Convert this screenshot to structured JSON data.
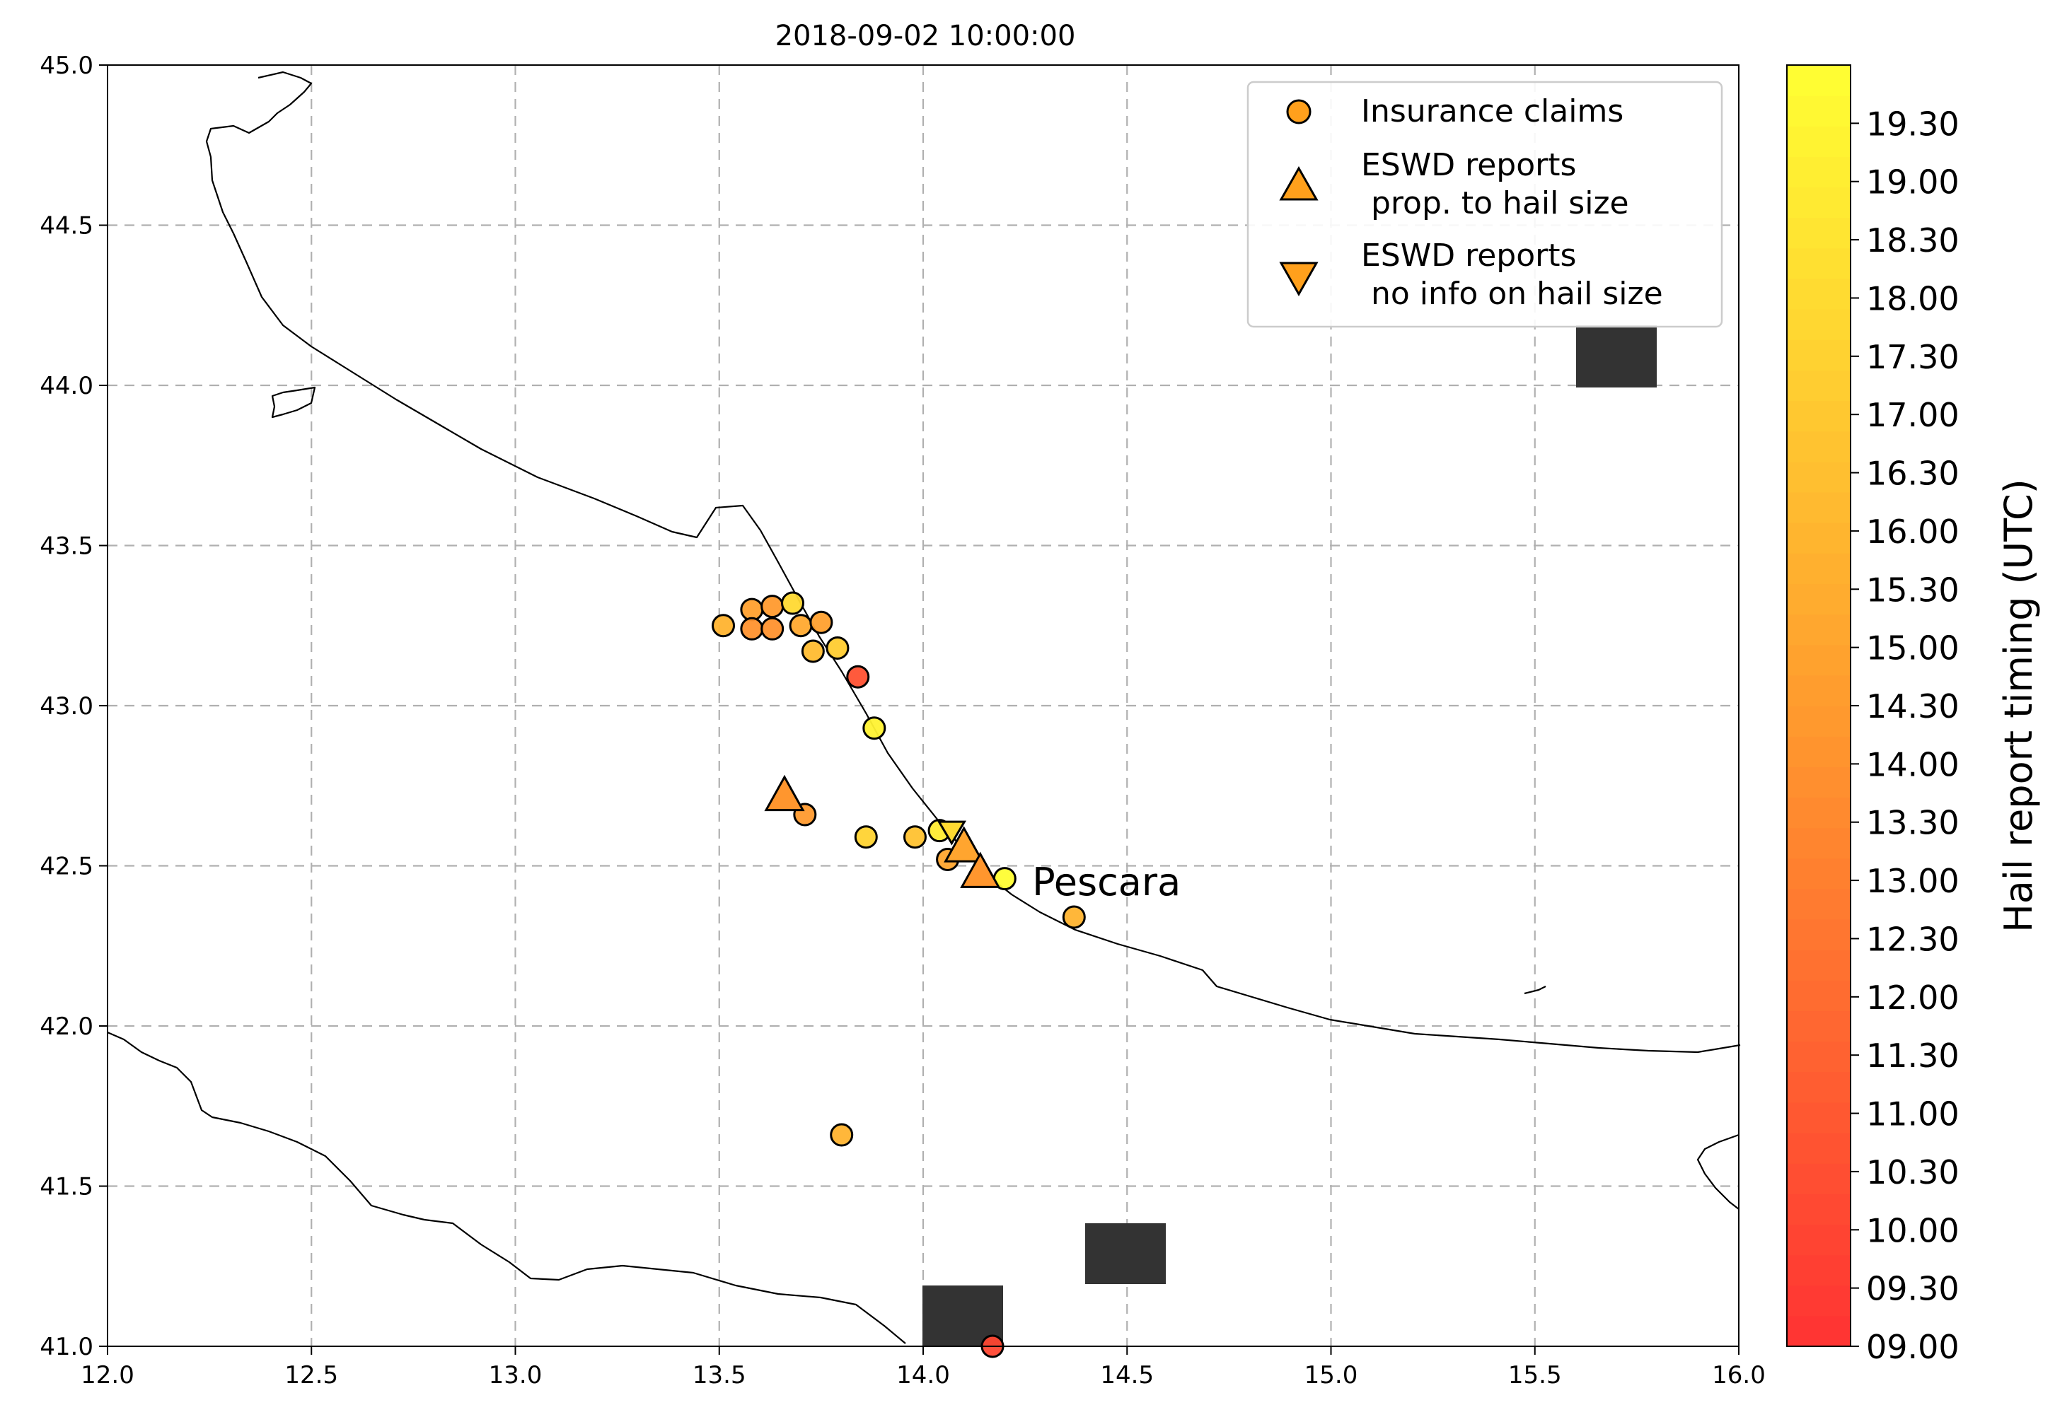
{
  "title": "2018-09-02 10:00:00",
  "map": {
    "lon_range": [
      12.0,
      16.0
    ],
    "lat_range": [
      41.0,
      45.0
    ],
    "x_ticks": [
      "12.0",
      "12.5",
      "13.0",
      "13.5",
      "14.0",
      "14.5",
      "15.0",
      "15.5",
      "16.0"
    ],
    "y_ticks": [
      "45.0",
      "44.5",
      "44.0",
      "43.5",
      "43.0",
      "42.5",
      "42.0",
      "41.5",
      "41.0"
    ],
    "grid": true,
    "city_label": {
      "name": "Pescara",
      "lon": 14.25,
      "lat": 42.43
    }
  },
  "legend": {
    "placement": "top-right",
    "items": [
      {
        "symbol": "circle",
        "line1": "Insurance claims",
        "line2": ""
      },
      {
        "symbol": "triangle-up",
        "line1": "ESWD reports",
        "line2": " prop. to hail size"
      },
      {
        "symbol": "triangle-down",
        "line1": "ESWD reports",
        "line2": " no info on hail size"
      }
    ]
  },
  "colorbar": {
    "label": "Hail report timing (UTC)",
    "min": 9.0,
    "max": 19.5,
    "color_low": "#ff3333",
    "color_mid": "#ff9b2e",
    "color_high": "#ffff33",
    "tick_labels": [
      "09.00",
      "09.30",
      "10.00",
      "10.30",
      "11.00",
      "11.30",
      "12.00",
      "12.30",
      "13.00",
      "13.30",
      "14.00",
      "14.30",
      "15.00",
      "15.30",
      "16.00",
      "16.30",
      "17.00",
      "17.30",
      "18.00",
      "18.30",
      "19.00",
      "19.30"
    ]
  },
  "chart_data": {
    "type": "scatter",
    "title": "2018-09-02 10:00:00",
    "xlim": [
      12.0,
      16.0
    ],
    "ylim": [
      41.0,
      45.0
    ],
    "grid": true,
    "legend_placement": "top-right",
    "insurance_claims": [
      {
        "lon": 13.51,
        "lat": 43.25,
        "time": 15.5
      },
      {
        "lon": 13.58,
        "lat": 43.3,
        "time": 14.5
      },
      {
        "lon": 13.63,
        "lat": 43.31,
        "time": 14.2
      },
      {
        "lon": 13.68,
        "lat": 43.32,
        "time": 17.5
      },
      {
        "lon": 13.58,
        "lat": 43.24,
        "time": 13.8
      },
      {
        "lon": 13.63,
        "lat": 43.24,
        "time": 13.8
      },
      {
        "lon": 13.7,
        "lat": 43.25,
        "time": 15.0
      },
      {
        "lon": 13.75,
        "lat": 43.26,
        "time": 14.5
      },
      {
        "lon": 13.73,
        "lat": 43.17,
        "time": 16.0
      },
      {
        "lon": 13.79,
        "lat": 43.18,
        "time": 16.8
      },
      {
        "lon": 13.84,
        "lat": 43.09,
        "time": 10.5
      },
      {
        "lon": 13.88,
        "lat": 42.93,
        "time": 18.8
      },
      {
        "lon": 13.71,
        "lat": 42.66,
        "time": 14.2
      },
      {
        "lon": 13.86,
        "lat": 42.59,
        "time": 17.2
      },
      {
        "lon": 13.98,
        "lat": 42.59,
        "time": 16.3
      },
      {
        "lon": 14.04,
        "lat": 42.61,
        "time": 18.5
      },
      {
        "lon": 14.06,
        "lat": 42.52,
        "time": 14.8
      },
      {
        "lon": 14.2,
        "lat": 42.46,
        "time": 19.4
      },
      {
        "lon": 14.37,
        "lat": 42.34,
        "time": 15.5
      },
      {
        "lon": 13.8,
        "lat": 41.66,
        "time": 15.5
      },
      {
        "lon": 14.17,
        "lat": 41.0,
        "time": 10.0
      }
    ],
    "eswd_prop_size": [
      {
        "lon": 13.66,
        "lat": 42.72,
        "time": 14.0
      },
      {
        "lon": 14.1,
        "lat": 42.56,
        "time": 14.8
      },
      {
        "lon": 14.14,
        "lat": 42.48,
        "time": 14.0
      }
    ],
    "eswd_no_size": [
      {
        "lon": 14.07,
        "lat": 42.61,
        "time": 17.5
      }
    ]
  }
}
